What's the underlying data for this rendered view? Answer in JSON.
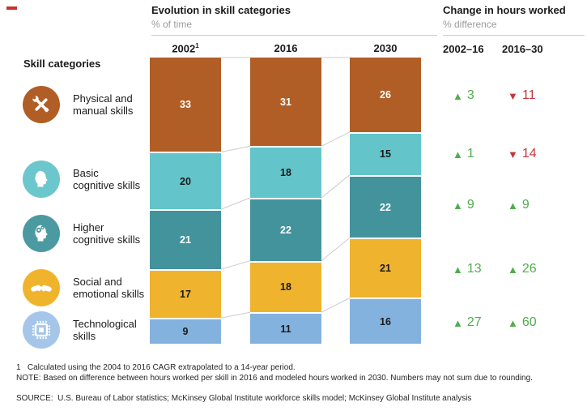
{
  "page": {
    "red_dash_color": "#c9302f"
  },
  "skill_panel": {
    "heading": "Skill categories",
    "rows": [
      {
        "icon": "tools-icon",
        "label": "Physical and\nmanual skills",
        "color": "#b05e26"
      },
      {
        "icon": "head-icon",
        "label": "Basic\ncognitive skills",
        "color": "#6cc7cc"
      },
      {
        "icon": "head-gears-icon",
        "label": "Higher\ncognitive skills",
        "color": "#4b9aa2"
      },
      {
        "icon": "handshake-icon",
        "label": "Social and\nemotional skills",
        "color": "#f0b42c"
      },
      {
        "icon": "chip-icon",
        "label": "Technological\nskills",
        "color": "#a5c6e9"
      }
    ]
  },
  "chart_data": {
    "type": "bar",
    "stacked": true,
    "title": "Evolution in skill categories",
    "subtitle": "% of time",
    "ylim": [
      0,
      100
    ],
    "columns": [
      {
        "label": "2002",
        "footnote_marker": "1"
      },
      {
        "label": "2016",
        "footnote_marker": ""
      },
      {
        "label": "2030",
        "footnote_marker": ""
      }
    ],
    "categories": [
      "Physical and manual skills",
      "Basic cognitive skills",
      "Higher cognitive skills",
      "Social and emotional skills",
      "Technological skills"
    ],
    "series": [
      {
        "name": "2002",
        "values": [
          33,
          20,
          21,
          17,
          9
        ]
      },
      {
        "name": "2016",
        "values": [
          31,
          18,
          22,
          18,
          11
        ]
      },
      {
        "name": "2030",
        "values": [
          26,
          15,
          22,
          21,
          16
        ]
      }
    ],
    "segment_colors": [
      "#b05e26",
      "#63c5ca",
      "#42939c",
      "#efb32d",
      "#84b2df"
    ],
    "segment_value_text": [
      "light",
      "dark",
      "light",
      "dark",
      "dark"
    ],
    "connector_color": "#cccccc",
    "changes": {
      "title": "Change in hours worked",
      "subtitle": "% difference",
      "columns": [
        "2002–16",
        "2016–30"
      ],
      "up_color": "#4fae4c",
      "down_color": "#c4363d",
      "rows": [
        {
          "category": "Physical and manual skills",
          "values": [
            {
              "dir": "up",
              "value": 3
            },
            {
              "dir": "down",
              "value": 11
            }
          ]
        },
        {
          "category": "Basic cognitive skills",
          "values": [
            {
              "dir": "up",
              "value": 1
            },
            {
              "dir": "down",
              "value": 14
            }
          ]
        },
        {
          "category": "Higher cognitive skills",
          "values": [
            {
              "dir": "up",
              "value": 9
            },
            {
              "dir": "up",
              "value": 9
            }
          ]
        },
        {
          "category": "Social and emotional skills",
          "values": [
            {
              "dir": "up",
              "value": 13
            },
            {
              "dir": "up",
              "value": 26
            }
          ]
        },
        {
          "category": "Technological skills",
          "values": [
            {
              "dir": "up",
              "value": 27
            },
            {
              "dir": "up",
              "value": 60
            }
          ]
        }
      ]
    }
  },
  "footnotes": {
    "footnote1": "1   Calculated using the 2004 to 2016 CAGR extrapolated to a 14-year period.",
    "note": "NOTE: Based on difference between hours worked per skill in 2016 and modeled hours worked in 2030. Numbers may not sum due to rounding.",
    "source": "SOURCE:  U.S. Bureau of Labor statistics; McKinsey Global Institute workforce skills model; McKinsey Global Institute analysis"
  }
}
